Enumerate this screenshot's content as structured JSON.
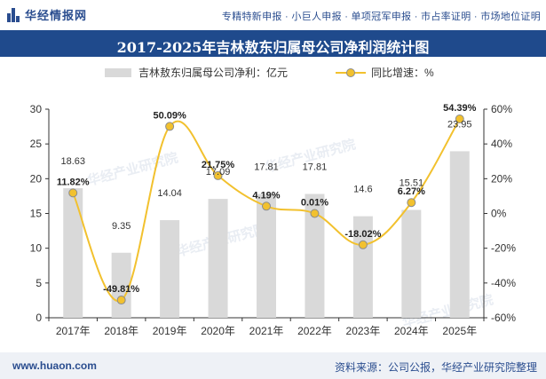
{
  "header": {
    "logo_text": "华经情报网",
    "services": "专精特新申报 · 小巨人申报 · 单项冠军申报 · 市占率证明 · 市场地位证明"
  },
  "title": "2017-2025年吉林敖东归属母公司净利润统计图",
  "footer": {
    "site": "www.huaon.com",
    "source": "资料来源：公司公报，华经产业研究院整理"
  },
  "colors": {
    "title_bg": "#1f4a8c",
    "bar": "#d9d9d9",
    "line": "#f2c12e",
    "marker_fill": "#f2c12e",
    "marker_stroke": "#8c8c8c"
  },
  "chart_data": {
    "type": "bar+line",
    "categories": [
      "2017年",
      "2018年",
      "2019年",
      "2020年",
      "2021年",
      "2022年",
      "2023年",
      "2024年",
      "2025年"
    ],
    "series": [
      {
        "name": "吉林敖东归属母公司净利：亿元",
        "type": "bar",
        "axis": "left",
        "values": [
          18.63,
          9.35,
          14.04,
          17.09,
          17.81,
          17.81,
          14.6,
          15.51,
          23.95
        ],
        "labels": [
          "18.63",
          "9.35",
          "14.04",
          "17.09",
          "17.81",
          "17.81",
          "14.6",
          "15.51",
          "23.95"
        ]
      },
      {
        "name": "同比增速：%",
        "type": "line",
        "axis": "right",
        "values": [
          11.82,
          -49.81,
          50.09,
          21.75,
          4.19,
          0.01,
          -18.02,
          6.27,
          54.39
        ],
        "labels": [
          "11.82%",
          "-49.81%",
          "50.09%",
          "21.75%",
          "4.19%",
          "0.01%",
          "-18.02%",
          "6.27%",
          "54.39%"
        ]
      }
    ],
    "y_left": {
      "min": 0,
      "max": 30,
      "ticks": [
        "0",
        "5",
        "10",
        "15",
        "20",
        "25",
        "30"
      ]
    },
    "y_right": {
      "min": -60,
      "max": 60,
      "ticks": [
        "-60%",
        "-40%",
        "-20%",
        "0%",
        "20%",
        "40%",
        "60%"
      ]
    },
    "legend_position": "top"
  }
}
